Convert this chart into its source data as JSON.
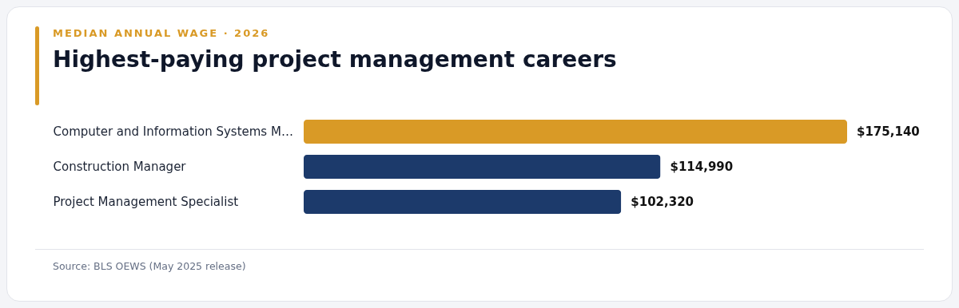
{
  "chart_data": {
    "type": "bar",
    "orientation": "horizontal",
    "title": "Highest-paying project management careers",
    "subtitle": "MEDIAN ANNUAL WAGE · 2026",
    "categories": [
      "Computer and Information Systems M…",
      "Construction Manager",
      "Project Management Specialist"
    ],
    "values": [
      175140,
      114990,
      102320
    ],
    "value_labels": [
      "$175,140",
      "$114,990",
      "$102,320"
    ],
    "colors": [
      "#d99a26",
      "#1c3a6b",
      "#1c3a6b"
    ],
    "annotations": [
      "Source: BLS OEWS (May 2025 release)"
    ]
  }
}
